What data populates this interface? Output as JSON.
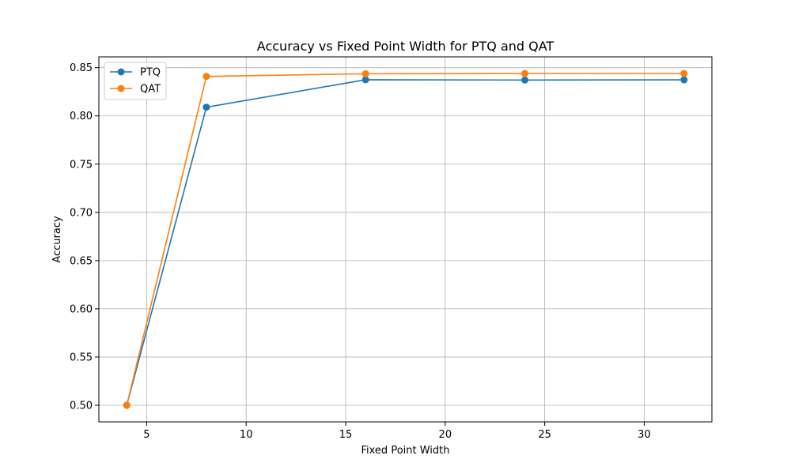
{
  "chart_data": {
    "type": "line",
    "title": "Accuracy vs Fixed Point Width for PTQ and QAT",
    "xlabel": "Fixed Point Width",
    "ylabel": "Accuracy",
    "x": [
      4,
      8,
      16,
      24,
      32
    ],
    "xlim": [
      2.6,
      33.4
    ],
    "ylim": [
      0.4828,
      0.8612
    ],
    "xticks": [
      5,
      10,
      15,
      20,
      25,
      30
    ],
    "yticks": [
      0.5,
      0.55,
      0.6,
      0.65,
      0.7,
      0.75,
      0.8,
      0.85
    ],
    "grid": true,
    "legend_position": "upper-left",
    "series": [
      {
        "name": "PTQ",
        "color": "#1f77b4",
        "values": [
          0.5,
          0.809,
          0.8375,
          0.8372,
          0.8374
        ]
      },
      {
        "name": "QAT",
        "color": "#ff7f0e",
        "values": [
          0.5,
          0.841,
          0.8437,
          0.844,
          0.844
        ]
      }
    ]
  }
}
